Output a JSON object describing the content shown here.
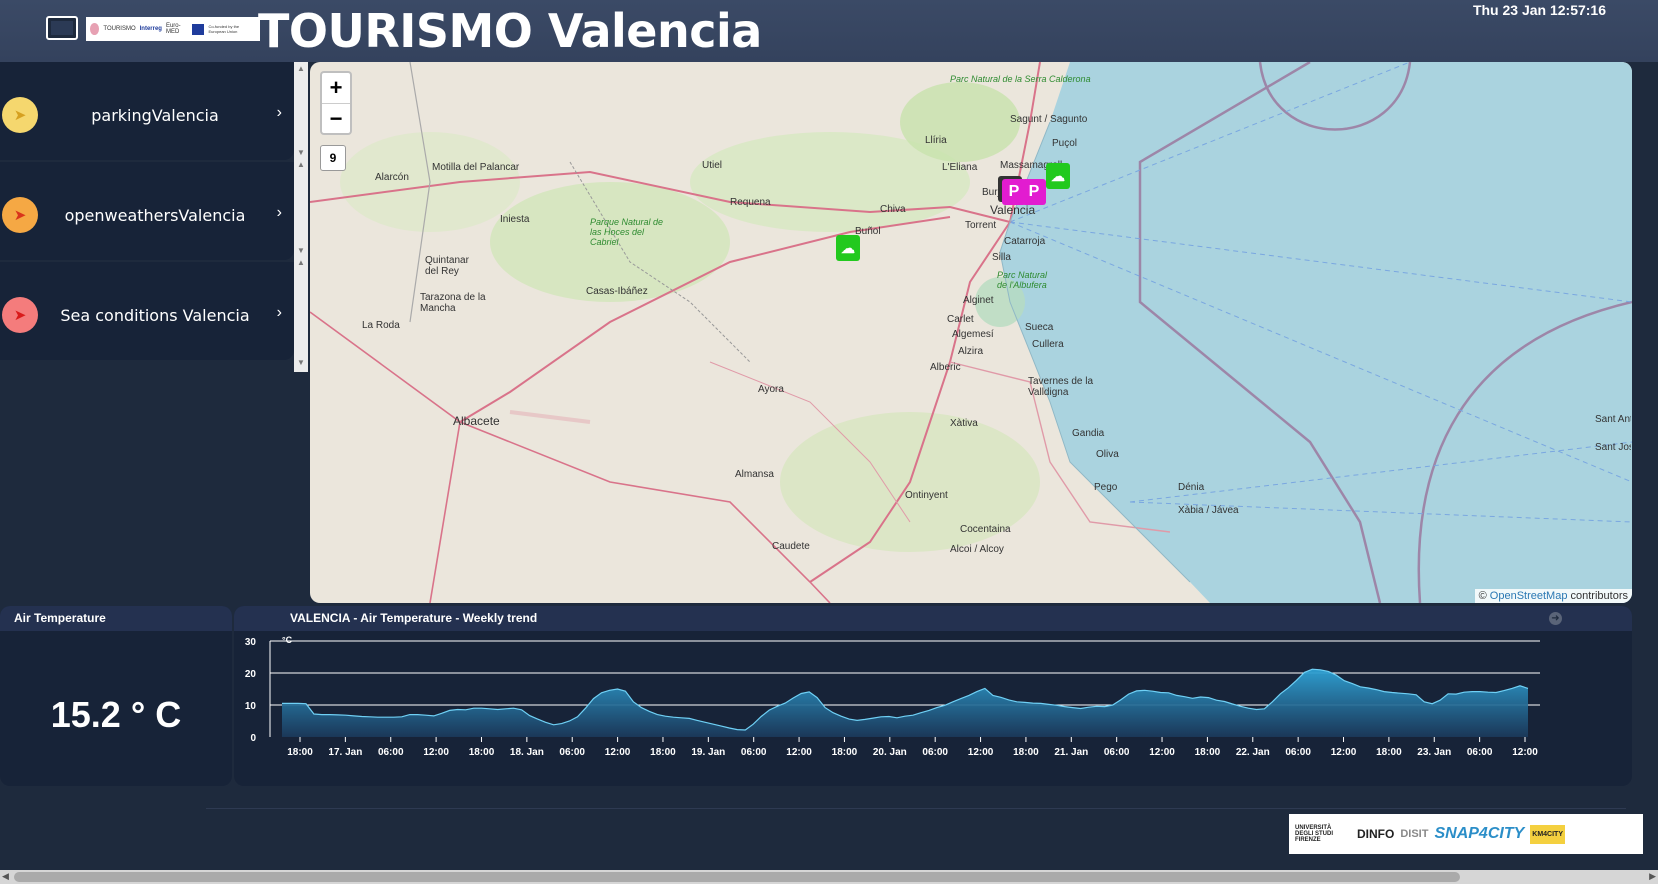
{
  "header": {
    "title": "TOURISMO Valencia",
    "datetime": "Thu 23 Jan 12:57:16",
    "partner_logo_text": [
      "TOURISMO",
      "Interreg",
      "Euro-MED",
      "Co-funded by the European Union"
    ]
  },
  "sidebar": {
    "items": [
      {
        "label": "parkingValencia",
        "icon": "location-arrow-icon",
        "color": "#f5d76e"
      },
      {
        "label": "openweathersValencia",
        "icon": "location-arrow-icon",
        "color": "#f5a844"
      },
      {
        "label": "Sea conditions Valencia",
        "icon": "location-arrow-icon",
        "color": "#f47c7c"
      }
    ]
  },
  "map": {
    "zoom_in": "+",
    "zoom_out": "−",
    "zoom_level": "9",
    "attribution_prefix": "©",
    "attribution_link": "OpenStreetMap",
    "attribution_suffix": "contributors",
    "places": [
      "Parc Natural de la Serra Calderona",
      "Sagunt / Sagunto",
      "Puçol",
      "Llíria",
      "Massamagrell",
      "L'Eliana",
      "Burjassot",
      "Motilla del Palancar",
      "Alarcón",
      "Utiel",
      "Requena",
      "Chiva",
      "Valencia",
      "Torrent",
      "Catarroja",
      "Iniesta",
      "Parque Natural de las Hoces del Cabriel",
      "Buñol",
      "Silla",
      "Parc Natural de l'Albufera",
      "Quintanar del Rey",
      "Casas-Ibáñez",
      "Tarazona de la Mancha",
      "Alginet",
      "Carlet",
      "Sueca",
      "Algemesí",
      "Cullera",
      "Alzira",
      "La Roda",
      "Alberic",
      "Tavernes de la Valldigna",
      "Ayora",
      "Albacete",
      "Xàtiva",
      "Gandia",
      "Oliva",
      "Almansa",
      "Dénia",
      "Pego",
      "Ontinyent",
      "Xàbia / Jávea",
      "Cocentaina",
      "Caudete",
      "Alcoi / Alcoy",
      "Sant Antoni de Portmany",
      "Sant Josep de sa Talaia"
    ],
    "markers": [
      {
        "type": "parking",
        "label": "P"
      },
      {
        "type": "parking",
        "label": "P"
      },
      {
        "type": "weather",
        "icon": "cloud-sun-icon"
      },
      {
        "type": "weather",
        "icon": "cloud-sun-icon"
      }
    ]
  },
  "air_temperature": {
    "title": "Air Temperature",
    "value": "15.2 ° C"
  },
  "trend": {
    "title": "VALENCIA - Air Temperature - Weekly trend",
    "close_icon": "circle-arrow-icon"
  },
  "chart_data": {
    "type": "area",
    "title": "VALENCIA - Air Temperature - Weekly trend",
    "ylabel": "°C",
    "xlabel": "",
    "ylim": [
      0,
      30
    ],
    "yticks": [
      0,
      10,
      20,
      30
    ],
    "grid": true,
    "color": "#2fa3d6",
    "xticks": [
      "18:00",
      "17. Jan",
      "06:00",
      "12:00",
      "18:00",
      "18. Jan",
      "06:00",
      "12:00",
      "18:00",
      "19. Jan",
      "06:00",
      "12:00",
      "18:00",
      "20. Jan",
      "06:00",
      "12:00",
      "18:00",
      "21. Jan",
      "06:00",
      "12:00",
      "18:00",
      "22. Jan",
      "06:00",
      "12:00",
      "18:00",
      "23. Jan",
      "06:00",
      "12:00"
    ],
    "series": [
      {
        "values": [
          10.5,
          10.5,
          10.5,
          10.4,
          7.2,
          7.0,
          7.0,
          6.9,
          6.8,
          6.6,
          6.4,
          6.3,
          6.2,
          6.2,
          6.2,
          6.3,
          7.0,
          7.0,
          6.8,
          6.6,
          7.4,
          8.3,
          8.6,
          8.5,
          9.0,
          9.0,
          8.8,
          8.6,
          8.8,
          9.0,
          8.5,
          6.7,
          5.6,
          4.6,
          3.8,
          4.2,
          5.0,
          6.3,
          9.0,
          12.0,
          13.8,
          14.6,
          15.0,
          14.3,
          11.0,
          9.2,
          8.0,
          7.0,
          6.5,
          6.2,
          6.0,
          5.8,
          5.2,
          4.6,
          4.0,
          3.4,
          2.8,
          2.3,
          2.2,
          4.0,
          6.4,
          8.4,
          9.6,
          10.6,
          12.2,
          13.6,
          14.1,
          12.3,
          9.2,
          7.6,
          6.5,
          5.6,
          5.2,
          5.5,
          5.9,
          6.3,
          6.4,
          6.0,
          6.5,
          6.8,
          7.6,
          8.3,
          9.2,
          9.9,
          11.0,
          12.0,
          13.0,
          14.2,
          15.2,
          13.0,
          12.4,
          11.6,
          11.0,
          10.8,
          10.6,
          10.5,
          10.2,
          9.9,
          9.5,
          9.2,
          8.9,
          9.3,
          9.6,
          9.5,
          10.0,
          11.6,
          13.4,
          14.4,
          14.6,
          14.3,
          13.9,
          13.8,
          13.0,
          12.6,
          12.1,
          12.5,
          12.3,
          11.5,
          11.1,
          10.3,
          9.6,
          9.0,
          8.6,
          8.8,
          11.0,
          13.5,
          15.4,
          17.7,
          20.2,
          21.2,
          21.0,
          20.5,
          19.3,
          17.6,
          16.7,
          15.7,
          15.3,
          14.8,
          14.2,
          13.9,
          13.7,
          13.5,
          13.2,
          11.0,
          10.4,
          11.5,
          13.5,
          13.4,
          14.0,
          14.2,
          14.2,
          14.0,
          13.9,
          14.5,
          15.2,
          16.0,
          15.2
        ]
      }
    ]
  },
  "footer": {
    "logos": [
      "UNIVERSITÀ DEGLI STUDI FIRENZE",
      "DINFO",
      "DISIT",
      "SNAP4CITY",
      "KM4CITY"
    ]
  }
}
